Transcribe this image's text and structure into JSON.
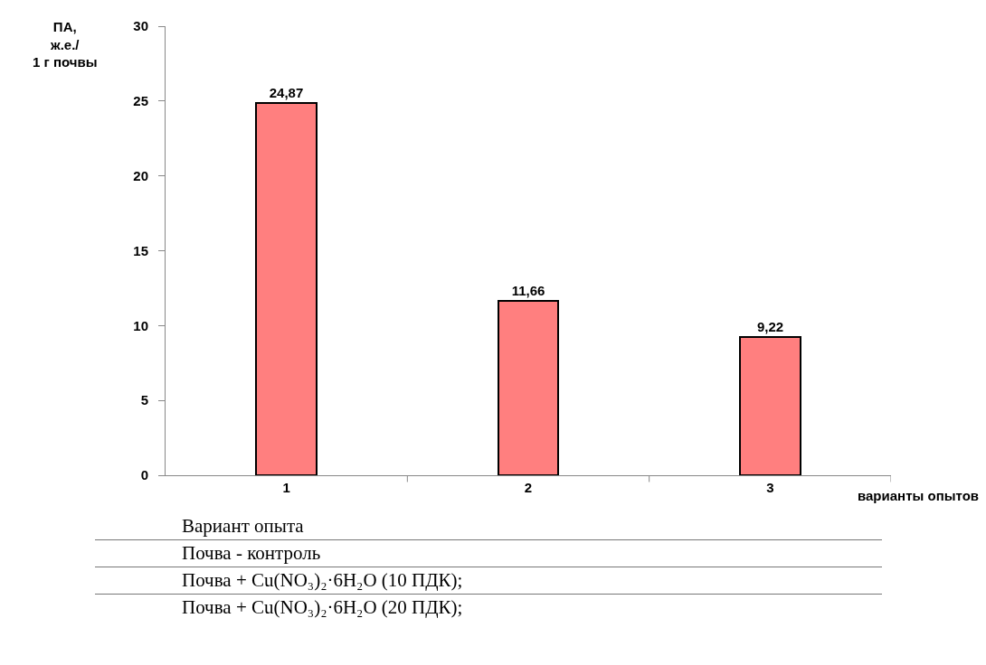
{
  "chart_data": {
    "type": "bar",
    "ylabel": "ПА,\nж.е./\n1 г почвы",
    "xlabel": "варианты опытов",
    "categories": [
      "1",
      "2",
      "3"
    ],
    "values": [
      24.87,
      11.66,
      9.22
    ],
    "value_labels": [
      "24,87",
      "11,66",
      "9,22"
    ],
    "color": "#ff7f7f",
    "ylim": [
      0,
      30
    ],
    "yticks": [
      0,
      5,
      10,
      15,
      20,
      25,
      30
    ],
    "grid": false,
    "legend": false,
    "annotations": [
      "Вариант опыта",
      "Почва - контроль",
      "Почва + Cu(NO₃)₂·6H₂O (10 ПДК);",
      "Почва + Cu(NO₃)₂·6H₂O (20 ПДК);"
    ]
  }
}
